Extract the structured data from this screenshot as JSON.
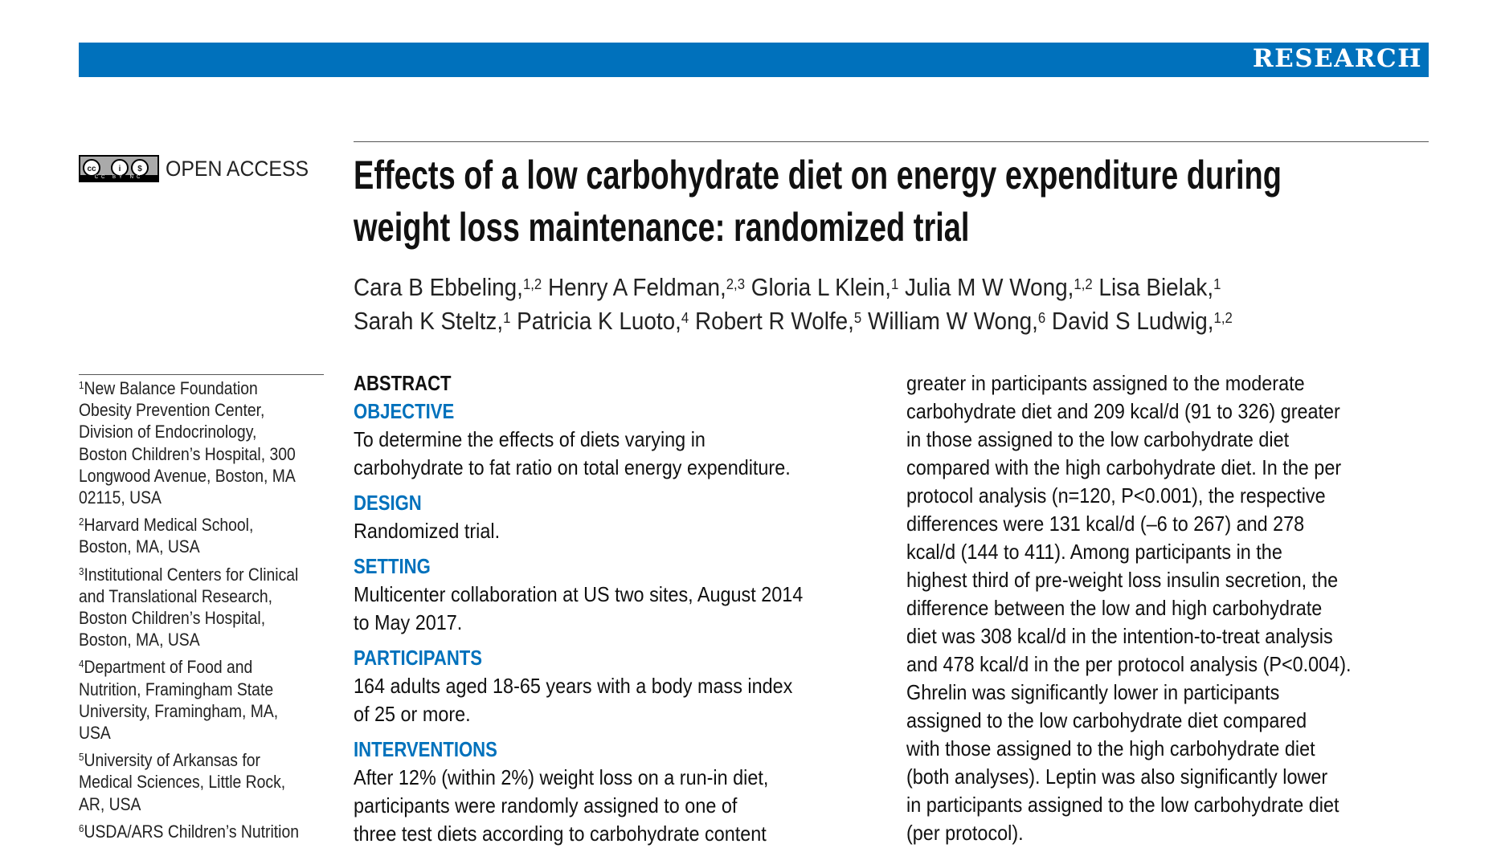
{
  "header": {
    "section_label": "RESEARCH",
    "brand_color": "#0071bc"
  },
  "license": {
    "badge": "CC BY NC",
    "label": "OPEN ACCESS"
  },
  "title_lines": [
    "Effects of a low carbohydrate diet on energy expenditure during",
    "weight loss maintenance: randomized trial"
  ],
  "authors": [
    [
      {
        "n": "Cara B Ebbeling,",
        "s": "1,2"
      },
      {
        "n": "Henry A Feldman,",
        "s": "2,3"
      },
      {
        "n": "Gloria L Klein,",
        "s": "1"
      },
      {
        "n": "Julia M W Wong,",
        "s": "1,2"
      },
      {
        "n": "Lisa Bielak,",
        "s": "1"
      }
    ],
    [
      {
        "n": "Sarah K Steltz,",
        "s": "1"
      },
      {
        "n": "Patricia K Luoto,",
        "s": "4"
      },
      {
        "n": "Robert R Wolfe,",
        "s": "5"
      },
      {
        "n": "William W Wong,",
        "s": "6"
      },
      {
        "n": "David S Ludwig,",
        "s": "1,2"
      }
    ]
  ],
  "affiliations": [
    {
      "num": "1",
      "lines": [
        "New Balance Foundation",
        "Obesity Prevention Center,",
        "Division of Endocrinology,",
        "Boston Children’s Hospital, 300",
        "Longwood Avenue, Boston, MA",
        "02115, USA"
      ]
    },
    {
      "num": "2",
      "lines": [
        "Harvard Medical School,",
        "Boston, MA, USA"
      ]
    },
    {
      "num": "3",
      "lines": [
        "Institutional Centers for Clinical",
        "and Translational Research,",
        "Boston Children’s Hospital,",
        "Boston, MA, USA"
      ]
    },
    {
      "num": "4",
      "lines": [
        "Department of Food and",
        "Nutrition, Framingham State",
        "University, Framingham, MA,",
        "USA"
      ]
    },
    {
      "num": "5",
      "lines": [
        "University of Arkansas for",
        "Medical Sciences, Little Rock,",
        "AR, USA"
      ]
    },
    {
      "num": "6",
      "lines": [
        "USDA/ARS Children’s Nutrition"
      ]
    }
  ],
  "abstract": {
    "heading": "ABSTRACT",
    "sections": [
      {
        "title": "OBJECTIVE",
        "lines": [
          "To determine the effects of diets varying in",
          "carbohydrate to fat ratio on total energy expenditure."
        ]
      },
      {
        "title": "DESIGN",
        "lines": [
          "Randomized trial."
        ]
      },
      {
        "title": "SETTING",
        "lines": [
          "Multicenter collaboration at US two sites, August 2014",
          "to May 2017."
        ]
      },
      {
        "title": "PARTICIPANTS",
        "lines": [
          "164 adults aged 18-65 years with a body mass index",
          "of 25 or more."
        ]
      },
      {
        "title": "INTERVENTIONS",
        "lines": [
          "After 12% (within 2%) weight loss on a run-in diet,",
          "participants were randomly assigned to one of",
          "three test diets according to carbohydrate content"
        ]
      }
    ],
    "continued_lines": [
      "greater in participants assigned to the moderate",
      "carbohydrate diet and 209 kcal/d (91 to 326) greater",
      "in those assigned to the low carbohydrate diet",
      "compared with the high carbohydrate diet. In the per",
      "protocol analysis (n=120, P<0.001), the respective",
      "differences were 131 kcal/d (–6 to 267) and 278",
      "kcal/d (144 to 411). Among participants in the",
      "highest third of pre-weight loss insulin secretion, the",
      "difference between the low and high carbohydrate",
      "diet was 308 kcal/d in the intention-to-treat analysis",
      "and 478 kcal/d in the per protocol analysis (P<0.004).",
      "Ghrelin was significantly lower in participants",
      "assigned to the low carbohydrate diet compared",
      "with those assigned to the high carbohydrate diet",
      "(both analyses). Leptin was also significantly lower",
      "in participants assigned to the low carbohydrate diet",
      "(per protocol)."
    ]
  }
}
